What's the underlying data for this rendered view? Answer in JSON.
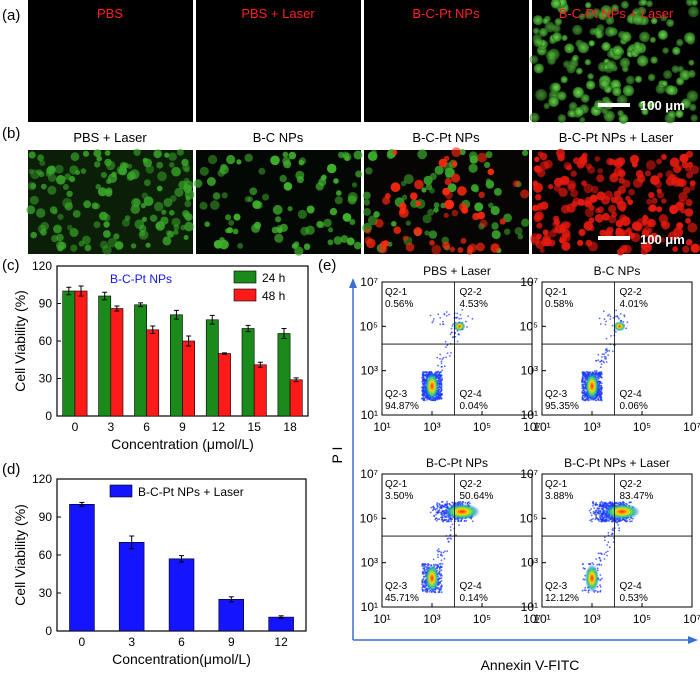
{
  "panel_labels": {
    "a": "(a)",
    "b": "(b)",
    "c": "(c)",
    "d": "(d)",
    "e": "(e)"
  },
  "row_a": {
    "titles": [
      "PBS",
      "PBS + Laser",
      "B-C-Pt NPs",
      "B-C-Pt NPs + Laser"
    ],
    "title_color": "#ff2020",
    "scale_bar": "100 μm"
  },
  "row_b": {
    "titles": [
      "PBS + Laser",
      "B-C NPs",
      "B-C-Pt NPs",
      "B-C-Pt NPs + Laser"
    ],
    "title_color": "#000000",
    "scale_bar": "100 μm"
  },
  "chart_data": [
    {
      "id": "c",
      "type": "bar",
      "title": "B-C-Pt NPs",
      "xlabel": "Concentration (μmol/L)",
      "ylabel": "Cell Viability (%)",
      "ylim": [
        0,
        120
      ],
      "yticks": [
        0,
        30,
        60,
        90,
        120
      ],
      "categories": [
        "0",
        "3",
        "6",
        "9",
        "12",
        "15",
        "18"
      ],
      "legend_position": "top-right",
      "series": [
        {
          "name": "24 h",
          "color": "#1a8a1a",
          "values": [
            100,
            96,
            89,
            81,
            77,
            70,
            66
          ],
          "errors": [
            3,
            3,
            1.5,
            3.5,
            3.5,
            2.5,
            4
          ]
        },
        {
          "name": "48 h",
          "color": "#ff1a1a",
          "values": [
            100,
            86,
            69,
            60,
            50,
            41,
            29
          ],
          "errors": [
            4,
            2,
            3,
            4,
            0.5,
            2,
            1.5
          ]
        }
      ]
    },
    {
      "id": "d",
      "type": "bar",
      "xlabel": "Concentration(μmol/L)",
      "ylabel": "Cell Viability (%)",
      "ylim": [
        0,
        120
      ],
      "yticks": [
        0,
        30,
        60,
        90,
        120
      ],
      "categories": [
        "0",
        "3",
        "6",
        "9",
        "12"
      ],
      "legend_position": "top-right",
      "series": [
        {
          "name": "B-C-Pt NPs + Laser",
          "color": "#1414ff",
          "values": [
            100,
            70,
            57,
            25,
            11
          ],
          "errors": [
            1.5,
            5,
            2.5,
            2,
            1
          ]
        }
      ]
    },
    {
      "id": "e",
      "type": "scatter",
      "xlabel": "Annexin V-FITC",
      "ylabel": "P I",
      "xscale": "log",
      "yscale": "log",
      "xlim": [
        10,
        10000000
      ],
      "ylim": [
        10,
        10000000
      ],
      "tick_labels": [
        "10¹",
        "10³",
        "10⁵",
        "10⁷"
      ],
      "subplots": [
        {
          "title": "PBS + Laser",
          "quadrants": {
            "Q2-1": "0.56%",
            "Q2-2": "4.53%",
            "Q2-3": "94.87%",
            "Q2-4": "0.04%"
          }
        },
        {
          "title": "B-C NPs",
          "quadrants": {
            "Q2-1": "0.58%",
            "Q2-2": "4.01%",
            "Q2-3": "95.35%",
            "Q2-4": "0.06%"
          }
        },
        {
          "title": "B-C-Pt NPs",
          "quadrants": {
            "Q2-1": "3.50%",
            "Q2-2": "50.64%",
            "Q2-3": "45.71%",
            "Q2-4": "0.14%"
          }
        },
        {
          "title": "B-C-Pt NPs + Laser",
          "quadrants": {
            "Q2-1": "3.88%",
            "Q2-2": "83.47%",
            "Q2-3": "12.12%",
            "Q2-4": "0.53%"
          }
        }
      ]
    }
  ]
}
